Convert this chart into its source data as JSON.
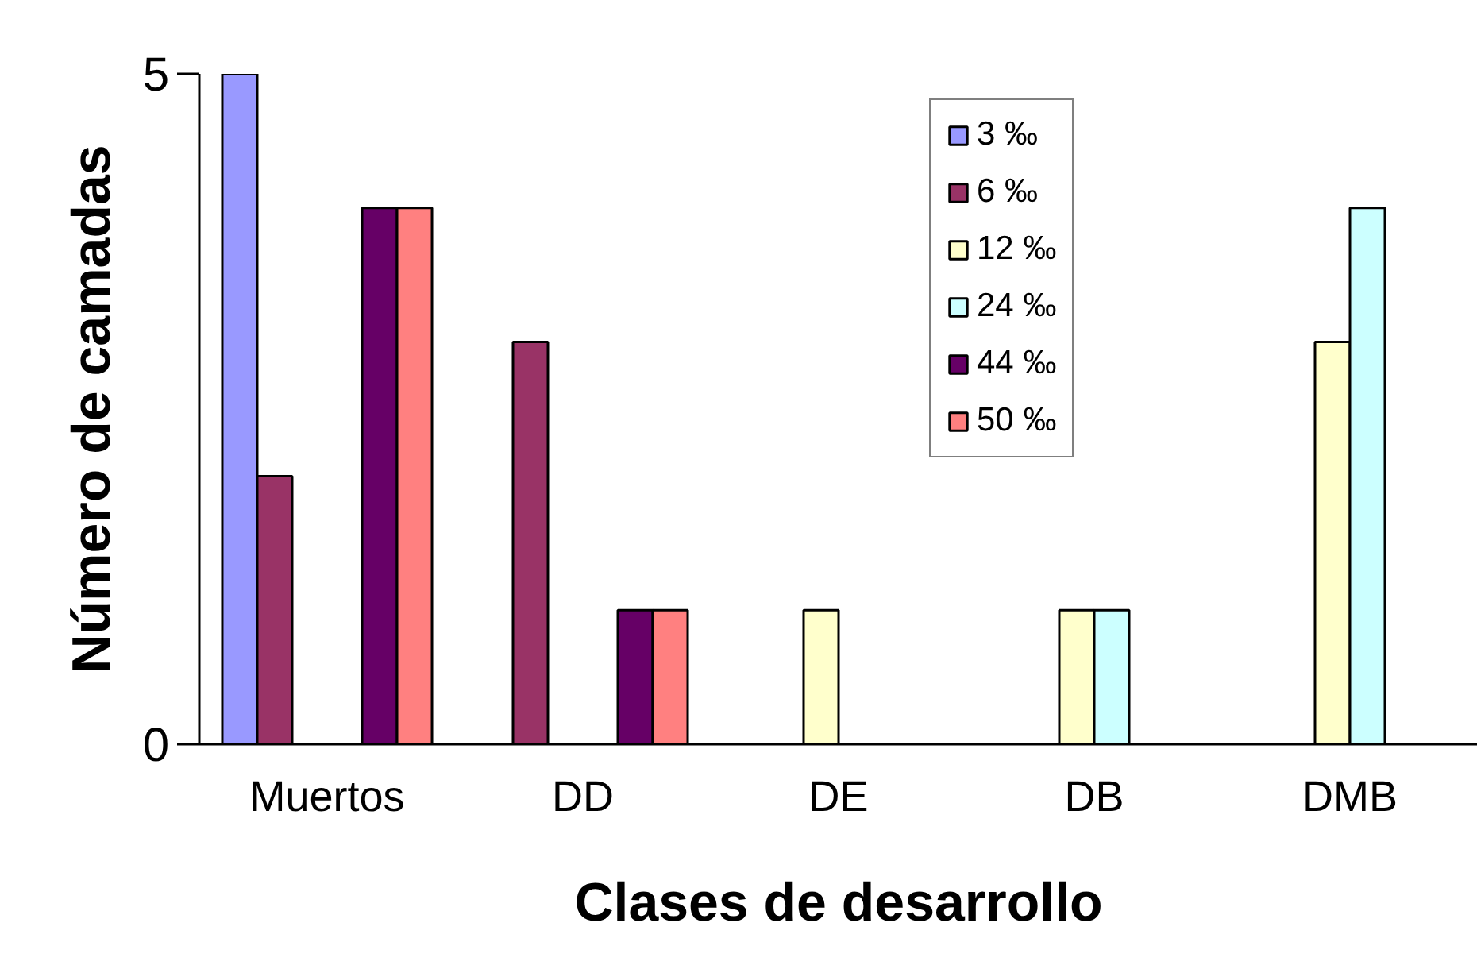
{
  "chart_data": {
    "type": "bar",
    "categories": [
      "Muertos",
      "DD",
      "DE",
      "DB",
      "DMB"
    ],
    "xlabel": "Clases de desarrollo",
    "ylabel": "Número de camadas",
    "ylim": [
      0,
      5
    ],
    "yticks": [
      0,
      5
    ],
    "grid": false,
    "legend": "top right",
    "series": [
      {
        "name": "3 ‰",
        "color": "#9999ff",
        "values": [
          5,
          null,
          null,
          null,
          null
        ]
      },
      {
        "name": "6 ‰",
        "color": "#993366",
        "values": [
          2,
          3,
          null,
          null,
          null
        ]
      },
      {
        "name": "12 ‰",
        "color": "#ffffcc",
        "values": [
          null,
          null,
          1,
          1,
          3
        ]
      },
      {
        "name": "24 ‰",
        "color": "#ccffff",
        "values": [
          null,
          null,
          null,
          1,
          4
        ]
      },
      {
        "name": "44 ‰",
        "color": "#660066",
        "values": [
          4,
          1,
          null,
          null,
          null
        ]
      },
      {
        "name": "50 ‰",
        "color": "#ff8080",
        "values": [
          4,
          1,
          null,
          null,
          null
        ]
      }
    ]
  }
}
